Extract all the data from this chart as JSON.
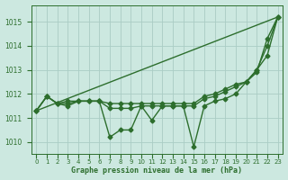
{
  "title": "Graphe pression niveau de la mer (hPa)",
  "bg_color": "#cce8e0",
  "grid_color": "#aaccc4",
  "line_color": "#2d6e2d",
  "xlim": [
    -0.5,
    23.5
  ],
  "ylim": [
    1009.5,
    1015.7
  ],
  "yticks": [
    1010,
    1011,
    1012,
    1013,
    1014,
    1015
  ],
  "xtick_labels": [
    "0",
    "1",
    "2",
    "3",
    "4",
    "5",
    "6",
    "7",
    "8",
    "9",
    "10",
    "11",
    "12",
    "13",
    "14",
    "15",
    "16",
    "17",
    "18",
    "19",
    "20",
    "21",
    "22",
    "23"
  ],
  "series": [
    [
      1011.3,
      1011.9,
      1011.6,
      1011.5,
      1011.7,
      1011.7,
      1011.7,
      1010.2,
      1010.5,
      1010.5,
      1011.5,
      1010.9,
      1011.5,
      1011.5,
      1011.5,
      1009.8,
      1011.5,
      1011.7,
      1011.8,
      1012.0,
      1012.5,
      1012.9,
      1014.3,
      1015.2
    ],
    [
      1011.3,
      1011.9,
      1011.6,
      1011.6,
      1011.7,
      1011.7,
      1011.7,
      1011.4,
      1011.4,
      1011.4,
      1011.5,
      1011.5,
      1011.5,
      1011.5,
      1011.5,
      1011.5,
      1011.8,
      1011.9,
      1012.1,
      1012.3,
      1012.5,
      1013.0,
      1013.6,
      1015.2
    ],
    [
      1011.3,
      1011.9,
      1011.6,
      1011.7,
      1011.7,
      1011.7,
      1011.7,
      1011.6,
      1011.6,
      1011.6,
      1011.6,
      1011.6,
      1011.6,
      1011.6,
      1011.6,
      1011.6,
      1011.9,
      1012.0,
      1012.2,
      1012.4,
      1012.5,
      1013.0,
      1014.0,
      1015.2
    ],
    [
      1011.3,
      1015.2
    ]
  ],
  "series_x": [
    [
      0,
      1,
      2,
      3,
      4,
      5,
      6,
      7,
      8,
      9,
      10,
      11,
      12,
      13,
      14,
      15,
      16,
      17,
      18,
      19,
      20,
      21,
      22,
      23
    ],
    [
      0,
      1,
      2,
      3,
      4,
      5,
      6,
      7,
      8,
      9,
      10,
      11,
      12,
      13,
      14,
      15,
      16,
      17,
      18,
      19,
      20,
      21,
      22,
      23
    ],
    [
      0,
      1,
      2,
      3,
      4,
      5,
      6,
      7,
      8,
      9,
      10,
      11,
      12,
      13,
      14,
      15,
      16,
      17,
      18,
      19,
      20,
      21,
      22,
      23
    ],
    [
      0,
      23
    ]
  ],
  "marker": "D",
  "marker_size": 2.5,
  "linewidth": 1.0
}
